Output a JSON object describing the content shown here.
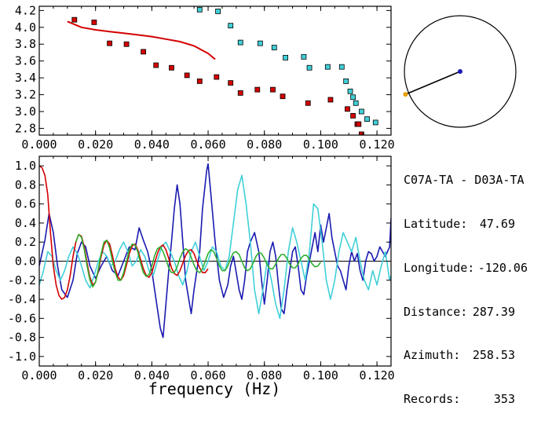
{
  "xlabel": "frequency (Hz)",
  "info": {
    "title": "C07A-TA - D03A-TA",
    "rows": [
      {
        "label": "Latitude:",
        "value": "47.69"
      },
      {
        "label": "Longitude:",
        "value": "-120.06"
      },
      {
        "label": "Distance:",
        "value": "287.39"
      },
      {
        "label": "Azimuth:",
        "value": "258.53"
      },
      {
        "label": "Records:",
        "value": "353"
      }
    ]
  },
  "colors": {
    "red": "#d40000",
    "cyan": "#40d0d8",
    "blue": "#1a1ab0",
    "green": "#30b030",
    "black": "#000000",
    "orange": "#e8a000"
  },
  "chart_data": [
    {
      "type": "scatter",
      "xlim": [
        0.0,
        0.125
      ],
      "ylim": [
        2.72,
        4.25
      ],
      "xticks": [
        "0.000",
        "0.020",
        "0.040",
        "0.060",
        "0.080",
        "0.100",
        "0.120"
      ],
      "yticks": [
        "2.8",
        "3.0",
        "3.2",
        "3.4",
        "3.6",
        "3.8",
        "4.0",
        "4.2"
      ],
      "series": [
        {
          "color": "red",
          "marker": "square",
          "x": [
            0.0125,
            0.0195,
            0.025,
            0.031,
            0.037,
            0.0415,
            0.047,
            0.0525,
            0.057,
            0.063,
            0.068,
            0.0715,
            0.0775,
            0.083,
            0.0865,
            0.0955,
            0.1035,
            0.1095,
            0.1115,
            0.113,
            0.1135,
            0.1145
          ],
          "y": [
            4.09,
            4.06,
            3.81,
            3.8,
            3.71,
            3.55,
            3.52,
            3.43,
            3.36,
            3.41,
            3.34,
            3.22,
            3.26,
            3.26,
            3.18,
            3.1,
            3.14,
            3.03,
            2.95,
            2.85,
            2.85,
            2.73
          ]
        },
        {
          "color": "cyan",
          "marker": "square",
          "x": [
            0.057,
            0.0635,
            0.068,
            0.0715,
            0.0785,
            0.0835,
            0.0875,
            0.094,
            0.096,
            0.1025,
            0.1075,
            0.109,
            0.1105,
            0.1115,
            0.1125,
            0.1145,
            0.1165,
            0.1195
          ],
          "y": [
            4.21,
            4.19,
            4.02,
            3.82,
            3.81,
            3.76,
            3.64,
            3.65,
            3.52,
            3.53,
            3.53,
            3.36,
            3.24,
            3.17,
            3.1,
            3.0,
            2.91,
            2.87
          ]
        },
        {
          "color": "red",
          "marker": "line",
          "x": [
            0.01,
            0.015,
            0.02,
            0.025,
            0.03,
            0.035,
            0.04,
            0.045,
            0.05,
            0.055,
            0.06,
            0.0625
          ],
          "y": [
            4.07,
            4.0,
            3.97,
            3.95,
            3.93,
            3.91,
            3.89,
            3.86,
            3.83,
            3.78,
            3.69,
            3.62
          ]
        }
      ]
    },
    {
      "type": "line",
      "xlabel": "frequency (Hz)",
      "xlim": [
        0.0,
        0.125
      ],
      "ylim": [
        -1.1,
        1.1
      ],
      "xticks": [
        "0.000",
        "0.020",
        "0.040",
        "0.060",
        "0.080",
        "0.100",
        "0.120"
      ],
      "yticks": [
        "1.0",
        "0.8",
        "0.6",
        "0.4",
        "0.2",
        "0.0",
        "-0.2",
        "-0.4",
        "-0.6",
        "-0.8",
        "-1.0"
      ],
      "zero_line": true,
      "series": [
        {
          "color": "blue",
          "x": [
            0.0,
            0.002,
            0.0035,
            0.005,
            0.0065,
            0.008,
            0.01,
            0.012,
            0.0135,
            0.015,
            0.0165,
            0.018,
            0.02,
            0.022,
            0.024,
            0.026,
            0.028,
            0.03,
            0.032,
            0.034,
            0.0355,
            0.037,
            0.0385,
            0.04,
            0.041,
            0.042,
            0.043,
            0.044,
            0.045,
            0.046,
            0.047,
            0.048,
            0.049,
            0.05,
            0.051,
            0.052,
            0.053,
            0.054,
            0.055,
            0.056,
            0.057,
            0.058,
            0.0595,
            0.06,
            0.061,
            0.0625,
            0.064,
            0.0655,
            0.067,
            0.068,
            0.069,
            0.07,
            0.071,
            0.072,
            0.073,
            0.074,
            0.075,
            0.0765,
            0.078,
            0.079,
            0.08,
            0.081,
            0.082,
            0.083,
            0.084,
            0.085,
            0.086,
            0.087,
            0.088,
            0.089,
            0.09,
            0.091,
            0.092,
            0.093,
            0.094,
            0.095,
            0.096,
            0.097,
            0.098,
            0.099,
            0.1,
            0.101,
            0.102,
            0.103,
            0.104,
            0.105,
            0.106,
            0.107,
            0.108,
            0.109,
            0.11,
            0.111,
            0.112,
            0.113,
            0.114,
            0.115,
            0.116,
            0.117,
            0.118,
            0.119,
            0.12,
            0.121,
            0.122,
            0.123,
            0.1245,
            0.125
          ],
          "y": [
            -0.05,
            0.22,
            0.5,
            0.3,
            -0.05,
            -0.3,
            -0.38,
            -0.2,
            0.08,
            0.2,
            0.15,
            -0.05,
            -0.18,
            -0.05,
            0.05,
            -0.1,
            -0.15,
            0.0,
            0.15,
            0.12,
            0.35,
            0.22,
            0.1,
            -0.1,
            -0.3,
            -0.5,
            -0.7,
            -0.8,
            -0.45,
            -0.1,
            0.2,
            0.55,
            0.8,
            0.6,
            0.2,
            -0.2,
            -0.38,
            -0.55,
            -0.3,
            -0.1,
            0.1,
            0.55,
            0.95,
            1.02,
            0.7,
            0.2,
            -0.2,
            -0.38,
            -0.25,
            -0.05,
            0.05,
            -0.12,
            -0.3,
            -0.4,
            -0.2,
            0.1,
            0.2,
            0.3,
            0.1,
            -0.2,
            -0.45,
            -0.2,
            0.1,
            0.2,
            0.05,
            -0.25,
            -0.5,
            -0.55,
            -0.3,
            -0.1,
            0.1,
            0.15,
            -0.05,
            -0.3,
            -0.35,
            -0.15,
            0.0,
            0.15,
            0.3,
            0.1,
            0.38,
            0.2,
            0.35,
            0.5,
            0.25,
            0.1,
            -0.05,
            -0.1,
            -0.2,
            -0.3,
            -0.05,
            0.1,
            0.0,
            0.08,
            -0.1,
            -0.2,
            0.0,
            0.1,
            0.08,
            0.0,
            0.05,
            0.15,
            0.1,
            0.05,
            0.15,
            0.45
          ]
        },
        {
          "color": "cyan",
          "x": [
            0.0,
            0.0015,
            0.003,
            0.0045,
            0.006,
            0.0075,
            0.009,
            0.0105,
            0.012,
            0.0135,
            0.015,
            0.0165,
            0.018,
            0.0195,
            0.021,
            0.0225,
            0.024,
            0.0255,
            0.027,
            0.0285,
            0.03,
            0.0315,
            0.033,
            0.0345,
            0.036,
            0.0375,
            0.039,
            0.0405,
            0.042,
            0.0435,
            0.045,
            0.0465,
            0.048,
            0.0495,
            0.051,
            0.0525,
            0.054,
            0.0555,
            0.057,
            0.0585,
            0.06,
            0.0615,
            0.063,
            0.0645,
            0.066,
            0.0675,
            0.069,
            0.0705,
            0.072,
            0.0735,
            0.075,
            0.0765,
            0.078,
            0.0795,
            0.081,
            0.0825,
            0.084,
            0.0855,
            0.087,
            0.0885,
            0.09,
            0.0915,
            0.093,
            0.0945,
            0.096,
            0.0975,
            0.099,
            0.1005,
            0.102,
            0.1035,
            0.105,
            0.1065,
            0.108,
            0.1095,
            0.111,
            0.1125,
            0.114,
            0.1155,
            0.117,
            0.1185,
            0.12,
            0.1215,
            0.123,
            0.1245,
            0.125
          ],
          "y": [
            -0.25,
            -0.1,
            0.1,
            0.05,
            -0.1,
            -0.2,
            -0.1,
            0.05,
            0.15,
            0.08,
            -0.05,
            -0.2,
            -0.28,
            -0.15,
            0.0,
            0.1,
            0.05,
            -0.05,
            0.0,
            0.12,
            0.2,
            0.1,
            -0.05,
            0.0,
            0.12,
            0.05,
            -0.1,
            -0.15,
            0.0,
            0.15,
            0.2,
            0.1,
            0.0,
            -0.15,
            -0.25,
            -0.1,
            0.1,
            0.2,
            0.05,
            -0.1,
            0.0,
            0.15,
            0.1,
            -0.05,
            -0.1,
            0.05,
            0.4,
            0.75,
            0.9,
            0.6,
            0.2,
            -0.3,
            -0.55,
            -0.3,
            0.0,
            -0.2,
            -0.45,
            -0.6,
            -0.3,
            0.1,
            0.35,
            0.2,
            0.0,
            -0.2,
            0.1,
            0.6,
            0.55,
            0.2,
            -0.2,
            -0.4,
            -0.2,
            0.1,
            0.3,
            0.2,
            0.1,
            0.25,
            0.0,
            -0.2,
            -0.3,
            -0.1,
            -0.25,
            -0.05,
            0.1,
            -0.2,
            -0.15
          ]
        },
        {
          "color": "red",
          "x": [
            0.0,
            0.001,
            0.002,
            0.003,
            0.004,
            0.005,
            0.006,
            0.007,
            0.008,
            0.009,
            0.01,
            0.011,
            0.012,
            0.013,
            0.014,
            0.015,
            0.016,
            0.017,
            0.018,
            0.019,
            0.02,
            0.021,
            0.022,
            0.023,
            0.024,
            0.025,
            0.026,
            0.027,
            0.028,
            0.029,
            0.03,
            0.031,
            0.032,
            0.033,
            0.034,
            0.035,
            0.036,
            0.037,
            0.038,
            0.039,
            0.04,
            0.041,
            0.042,
            0.043,
            0.044,
            0.045,
            0.046,
            0.047,
            0.048,
            0.049,
            0.05,
            0.051,
            0.052,
            0.053,
            0.054,
            0.055,
            0.056,
            0.057,
            0.058,
            0.059,
            0.06
          ],
          "y": [
            1.0,
            0.98,
            0.9,
            0.7,
            0.3,
            -0.05,
            -0.25,
            -0.36,
            -0.4,
            -0.38,
            -0.3,
            -0.15,
            0.05,
            0.2,
            0.28,
            0.26,
            0.15,
            -0.02,
            -0.17,
            -0.25,
            -0.22,
            -0.1,
            0.05,
            0.17,
            0.22,
            0.18,
            0.06,
            -0.08,
            -0.17,
            -0.2,
            -0.15,
            -0.04,
            0.08,
            0.16,
            0.18,
            0.12,
            0.02,
            -0.08,
            -0.15,
            -0.17,
            -0.12,
            -0.02,
            0.08,
            0.15,
            0.17,
            0.12,
            0.03,
            -0.07,
            -0.13,
            -0.15,
            -0.1,
            -0.02,
            0.06,
            0.11,
            0.12,
            0.08,
            0.0,
            -0.07,
            -0.12,
            -0.12,
            -0.08
          ]
        },
        {
          "color": "green",
          "x": [
            0.013,
            0.014,
            0.015,
            0.016,
            0.017,
            0.018,
            0.019,
            0.02,
            0.021,
            0.022,
            0.023,
            0.024,
            0.025,
            0.026,
            0.027,
            0.028,
            0.029,
            0.03,
            0.031,
            0.032,
            0.033,
            0.034,
            0.035,
            0.036,
            0.037,
            0.038,
            0.039,
            0.04,
            0.041,
            0.042,
            0.043,
            0.044,
            0.045,
            0.046,
            0.047,
            0.048,
            0.049,
            0.05,
            0.051,
            0.052,
            0.053,
            0.054,
            0.055,
            0.056,
            0.057,
            0.058,
            0.059,
            0.06,
            0.061,
            0.062,
            0.063,
            0.064,
            0.065,
            0.066,
            0.067,
            0.068,
            0.069,
            0.07,
            0.071,
            0.072,
            0.073,
            0.074,
            0.075,
            0.076,
            0.077,
            0.078,
            0.079,
            0.08,
            0.081,
            0.082,
            0.083,
            0.084,
            0.085,
            0.086,
            0.087,
            0.088,
            0.089,
            0.09,
            0.091,
            0.092,
            0.093,
            0.094,
            0.095,
            0.096,
            0.097,
            0.098,
            0.099,
            0.1
          ],
          "y": [
            0.2,
            0.28,
            0.25,
            0.12,
            -0.05,
            -0.2,
            -0.27,
            -0.22,
            -0.08,
            0.08,
            0.2,
            0.22,
            0.14,
            0.0,
            -0.12,
            -0.2,
            -0.2,
            -0.12,
            0.0,
            0.12,
            0.18,
            0.17,
            0.1,
            -0.02,
            -0.12,
            -0.16,
            -0.14,
            -0.05,
            0.06,
            0.13,
            0.15,
            0.1,
            0.02,
            -0.07,
            -0.12,
            -0.12,
            -0.06,
            0.03,
            0.1,
            0.13,
            0.11,
            0.04,
            -0.04,
            -0.1,
            -0.12,
            -0.08,
            0.0,
            0.08,
            0.12,
            0.1,
            0.03,
            -0.05,
            -0.1,
            -0.1,
            -0.05,
            0.03,
            0.09,
            0.1,
            0.07,
            0.0,
            -0.07,
            -0.1,
            -0.08,
            -0.02,
            0.05,
            0.09,
            0.08,
            0.03,
            -0.04,
            -0.08,
            -0.08,
            -0.03,
            0.03,
            0.07,
            0.07,
            0.03,
            -0.03,
            -0.07,
            -0.07,
            -0.03,
            0.03,
            0.06,
            0.06,
            0.02,
            -0.03,
            -0.06,
            -0.05,
            -0.01
          ]
        }
      ]
    }
  ],
  "dial": {
    "angle_deg": 258.53,
    "color": "black",
    "center_color": "blue",
    "tip_color": "orange"
  }
}
